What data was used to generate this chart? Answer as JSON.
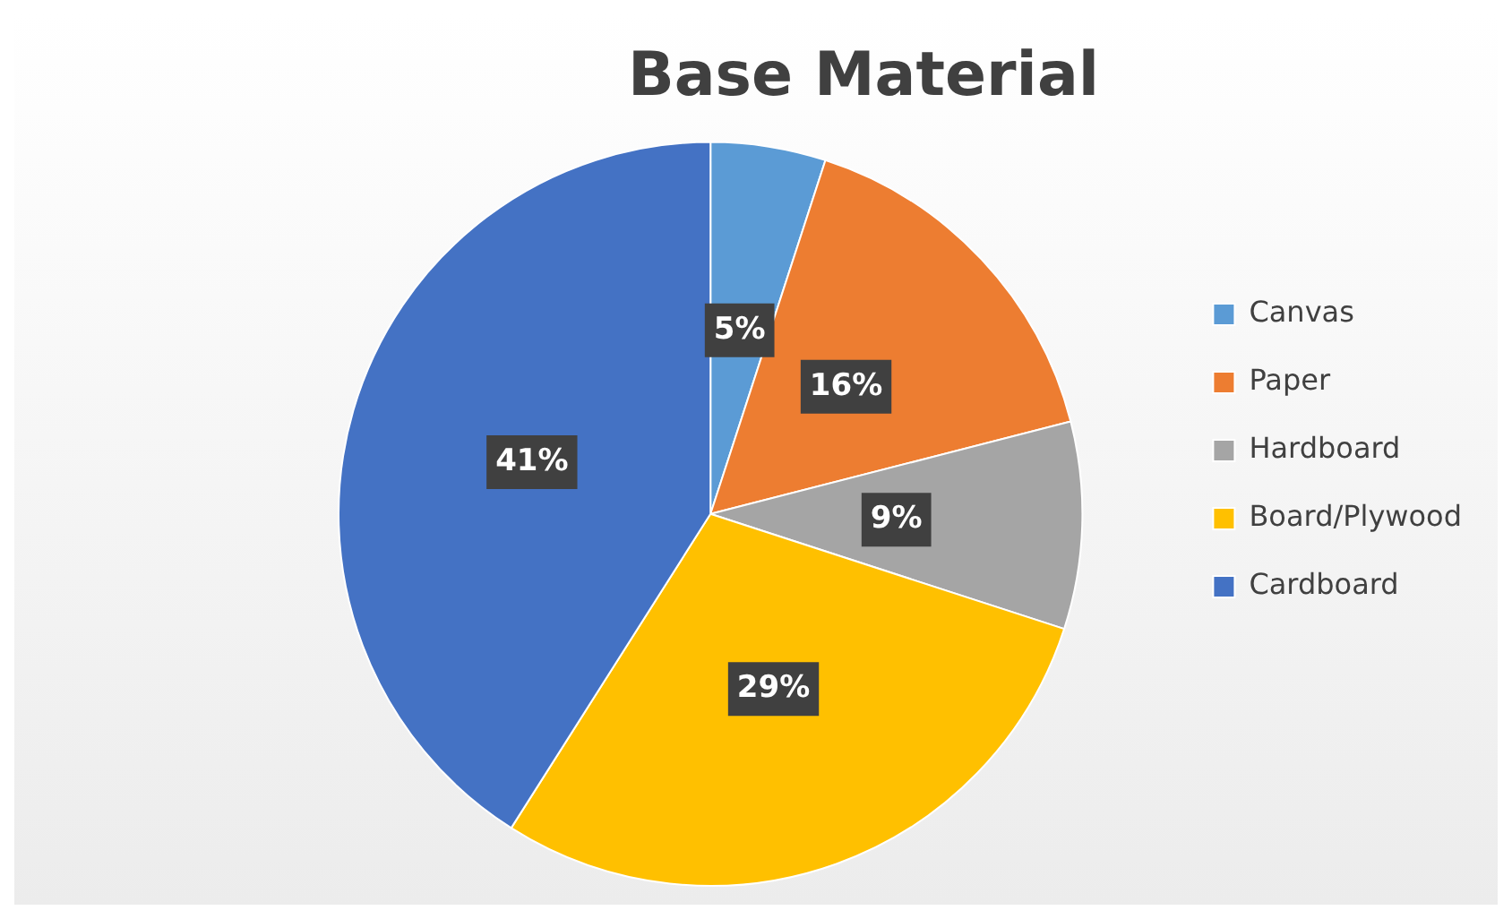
{
  "chart_data": {
    "type": "pie",
    "title": "Base Material",
    "categories": [
      "Canvas",
      "Paper",
      "Hardboard",
      "Board/Plywood",
      "Cardboard"
    ],
    "values": [
      5,
      16,
      9,
      29,
      41
    ],
    "colors": [
      "#5b9bd5",
      "#ed7d31",
      "#a5a5a5",
      "#ffc000",
      "#4472c4"
    ],
    "value_labels": [
      "5%",
      "16%",
      "9%",
      "29%",
      "41%"
    ],
    "legend": "right"
  }
}
